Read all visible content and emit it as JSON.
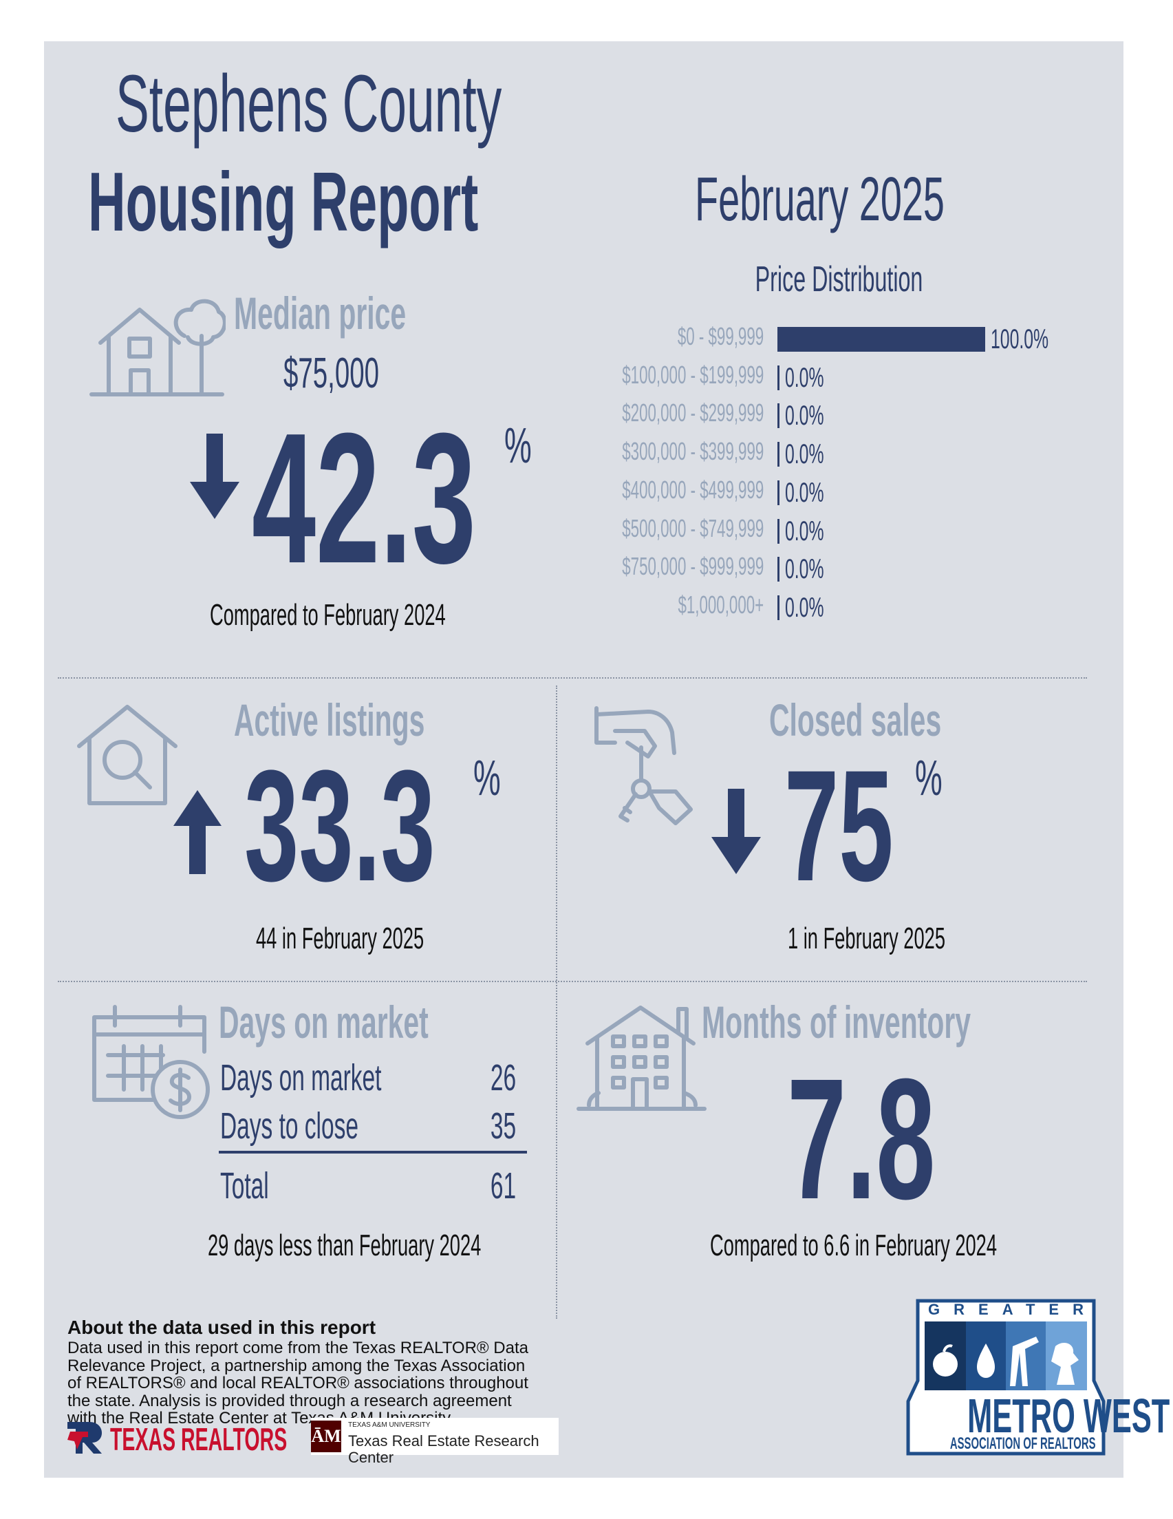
{
  "header": {
    "title_line1": "Stephens County",
    "title_line2": "Housing Report",
    "month": "February 2025"
  },
  "median_price": {
    "heading": "Median price",
    "value": "$75,000",
    "direction": "down",
    "change": "42.3",
    "percent_sign": "%",
    "comparison": "Compared to February 2024"
  },
  "price_distribution": {
    "title": "Price Distribution",
    "rows": [
      {
        "label": "$0 - $99,999",
        "value_text": "100.0%"
      },
      {
        "label": "$100,000 - $199,999",
        "value_text": "0.0%"
      },
      {
        "label": "$200,000 - $299,999",
        "value_text": "0.0%"
      },
      {
        "label": "$300,000 - $399,999",
        "value_text": "0.0%"
      },
      {
        "label": "$400,000 - $499,999",
        "value_text": "0.0%"
      },
      {
        "label": "$500,000 - $749,999",
        "value_text": "0.0%"
      },
      {
        "label": "$750,000 - $999,999",
        "value_text": "0.0%"
      },
      {
        "label": "$1,000,000+",
        "value_text": "0.0%"
      }
    ]
  },
  "active_listings": {
    "heading": "Active listings",
    "direction": "up",
    "change": "33.3",
    "percent_sign": "%",
    "detail": "44 in February 2025"
  },
  "closed_sales": {
    "heading": "Closed sales",
    "direction": "down",
    "change": "75",
    "percent_sign": "%",
    "detail": "1 in February 2025"
  },
  "days_on_market": {
    "heading": "Days on market",
    "rows": [
      {
        "label": "Days on market",
        "value": "26"
      },
      {
        "label": "Days to close",
        "value": "35"
      }
    ],
    "total_label": "Total",
    "total_value": "61",
    "comparison": "29 days less than February 2024"
  },
  "months_inventory": {
    "heading": "Months of inventory",
    "value": "7.8",
    "comparison": "Compared to 6.6 in February 2024"
  },
  "footer": {
    "about_heading": "About the data used in this report",
    "about_text": "Data used in this report come from the Texas REALTOR® Data Relevance Project, a partnership among the Texas Association of REALTORS® and local REALTOR® associations throughout the state. Analysis is provided through a research agreement with the Real Estate Center at Texas A&M University.",
    "texas_realtors_logo": "TEXAS REALTORS",
    "tamu_small": "TEXAS A&M UNIVERSITY",
    "tamu_name": "Texas Real Estate Research Center",
    "metro_top": "GREATER",
    "metro_name": "METRO WEST",
    "metro_sub": "ASSOCIATION OF REALTORS"
  },
  "colors": {
    "navy": "#2e3f6b",
    "grey_text": "#97a6bb",
    "panel_bg": "#dcdfe5",
    "logo_red": "#c8102e",
    "logo_blue": "#1f4e89",
    "tamu_maroon": "#500000"
  }
}
